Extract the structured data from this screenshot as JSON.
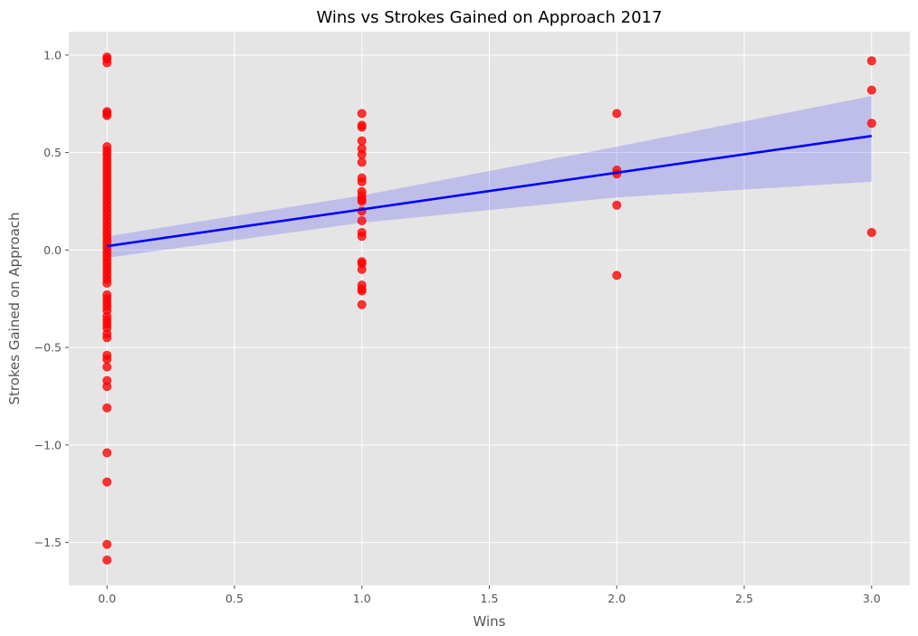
{
  "chart_data": {
    "type": "scatter",
    "title": "Wins vs Strokes Gained on Approach 2017",
    "xlabel": "Wins",
    "ylabel": "Strokes Gained on Approach",
    "xlim": [
      -0.15,
      3.15
    ],
    "ylim": [
      -1.72,
      1.12
    ],
    "x_ticks": [
      0.0,
      0.5,
      1.0,
      1.5,
      2.0,
      2.5,
      3.0
    ],
    "x_tick_labels": [
      "0.0",
      "0.5",
      "1.0",
      "1.5",
      "2.0",
      "2.5",
      "3.0"
    ],
    "y_ticks": [
      -1.5,
      -1.0,
      -0.5,
      0.0,
      0.5,
      1.0
    ],
    "y_tick_labels": [
      "−1.5",
      "−1.0",
      "−0.5",
      "0.0",
      "0.5",
      "1.0"
    ],
    "grid": true,
    "series": [
      {
        "kind": "scatter",
        "color": "#ff0000",
        "points": [
          [
            0,
            0.99
          ],
          [
            0,
            0.98
          ],
          [
            0,
            0.96
          ],
          [
            0,
            0.71
          ],
          [
            0,
            0.7
          ],
          [
            0,
            0.69
          ],
          [
            0,
            0.53
          ],
          [
            0,
            0.51
          ],
          [
            0,
            0.49
          ],
          [
            0,
            0.47
          ],
          [
            0,
            0.45
          ],
          [
            0,
            0.43
          ],
          [
            0,
            0.41
          ],
          [
            0,
            0.39
          ],
          [
            0,
            0.37
          ],
          [
            0,
            0.35
          ],
          [
            0,
            0.33
          ],
          [
            0,
            0.31
          ],
          [
            0,
            0.29
          ],
          [
            0,
            0.27
          ],
          [
            0,
            0.25
          ],
          [
            0,
            0.23
          ],
          [
            0,
            0.21
          ],
          [
            0,
            0.19
          ],
          [
            0,
            0.17
          ],
          [
            0,
            0.15
          ],
          [
            0,
            0.13
          ],
          [
            0,
            0.11
          ],
          [
            0,
            0.09
          ],
          [
            0,
            0.07
          ],
          [
            0,
            0.05
          ],
          [
            0,
            0.03
          ],
          [
            0,
            0.01
          ],
          [
            0,
            -0.01
          ],
          [
            0,
            -0.03
          ],
          [
            0,
            -0.05
          ],
          [
            0,
            -0.07
          ],
          [
            0,
            -0.09
          ],
          [
            0,
            -0.11
          ],
          [
            0,
            -0.13
          ],
          [
            0,
            -0.15
          ],
          [
            0,
            -0.17
          ],
          [
            0,
            -0.23
          ],
          [
            0,
            -0.25
          ],
          [
            0,
            -0.27
          ],
          [
            0,
            -0.29
          ],
          [
            0,
            -0.31
          ],
          [
            0,
            -0.34
          ],
          [
            0,
            -0.36
          ],
          [
            0,
            -0.38
          ],
          [
            0,
            -0.4
          ],
          [
            0,
            -0.43
          ],
          [
            0,
            -0.45
          ],
          [
            0,
            -0.54
          ],
          [
            0,
            -0.56
          ],
          [
            0,
            -0.6
          ],
          [
            0,
            -0.67
          ],
          [
            0,
            -0.7
          ],
          [
            0,
            -0.81
          ],
          [
            0,
            -1.04
          ],
          [
            0,
            -1.19
          ],
          [
            0,
            -1.51
          ],
          [
            0,
            -1.59
          ],
          [
            1,
            0.7
          ],
          [
            1,
            0.64
          ],
          [
            1,
            0.63
          ],
          [
            1,
            0.56
          ],
          [
            1,
            0.52
          ],
          [
            1,
            0.49
          ],
          [
            1,
            0.45
          ],
          [
            1,
            0.37
          ],
          [
            1,
            0.35
          ],
          [
            1,
            0.3
          ],
          [
            1,
            0.28
          ],
          [
            1,
            0.26
          ],
          [
            1,
            0.25
          ],
          [
            1,
            0.2
          ],
          [
            1,
            0.15
          ],
          [
            1,
            0.09
          ],
          [
            1,
            0.07
          ],
          [
            1,
            -0.06
          ],
          [
            1,
            -0.07
          ],
          [
            1,
            -0.1
          ],
          [
            1,
            -0.18
          ],
          [
            1,
            -0.2
          ],
          [
            1,
            -0.21
          ],
          [
            1,
            -0.28
          ],
          [
            2,
            0.7
          ],
          [
            2,
            0.41
          ],
          [
            2,
            0.39
          ],
          [
            2,
            0.23
          ],
          [
            2,
            -0.13
          ],
          [
            3,
            0.97
          ],
          [
            3,
            0.82
          ],
          [
            3,
            0.65
          ],
          [
            3,
            0.09
          ]
        ]
      },
      {
        "kind": "regression-line",
        "color": "#0000ff",
        "x": [
          0,
          3
        ],
        "y": [
          0.02,
          0.585
        ]
      },
      {
        "kind": "confidence-band",
        "color": "#0000ff",
        "x": [
          0,
          1,
          2,
          3
        ],
        "lower": [
          -0.04,
          0.14,
          0.27,
          0.35
        ],
        "upper": [
          0.07,
          0.28,
          0.53,
          0.79
        ]
      }
    ]
  }
}
